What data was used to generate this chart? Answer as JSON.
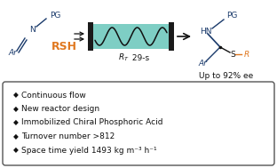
{
  "bg_color": "#ffffff",
  "blue_color": "#1a3a6b",
  "orange_color": "#e07820",
  "black_color": "#111111",
  "teal_color": "#7ecec4",
  "box_border": "#555555",
  "bullet_points": [
    "Continuous flow",
    "New reactor design",
    "Immobilized Chiral Phosphoric Acid",
    "Turnover number >812",
    "Space time yield 1493 kg m⁻³ h⁻¹"
  ],
  "figsize": [
    3.12,
    1.89
  ],
  "dpi": 100
}
